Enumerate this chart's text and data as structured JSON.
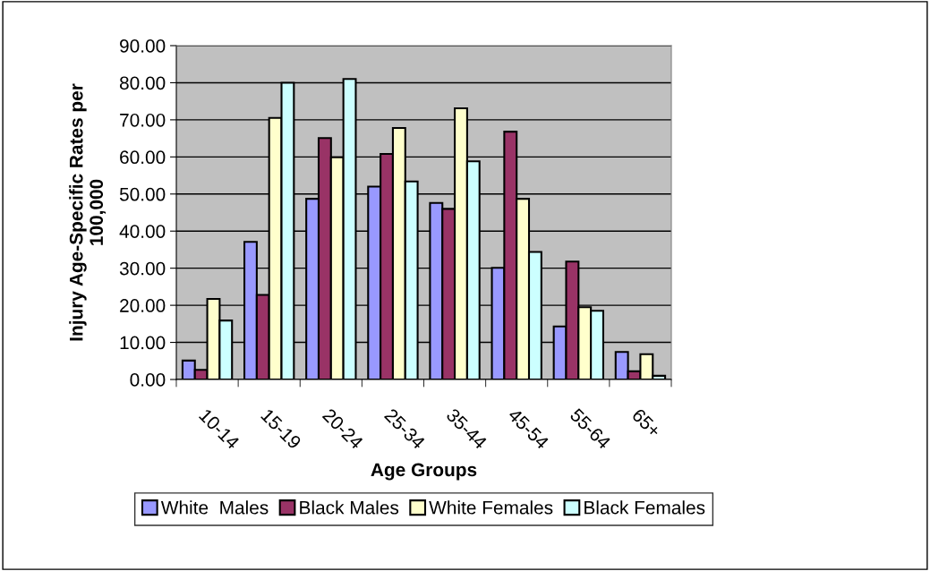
{
  "chart_data": {
    "type": "bar",
    "xlabel": "Age Groups",
    "ylabel": "Injury Age-Specific Rates per\n100,000",
    "categories": [
      "10-14",
      "15-19",
      "20-24",
      "25-34",
      "35-44",
      "45-54",
      "55-64",
      "65+"
    ],
    "series": [
      {
        "name": "White  Males",
        "color": "#9999ff",
        "values": [
          5.1,
          37.1,
          48.7,
          52.0,
          47.6,
          30.1,
          14.3,
          7.4
        ]
      },
      {
        "name": "Black Males",
        "color": "#993366",
        "values": [
          2.6,
          22.8,
          65.1,
          60.8,
          46.0,
          66.8,
          31.8,
          2.2
        ]
      },
      {
        "name": "White Females",
        "color": "#ffffcc",
        "values": [
          21.7,
          70.5,
          59.9,
          67.8,
          73.1,
          48.7,
          19.5,
          6.8
        ]
      },
      {
        "name": "Black Females",
        "color": "#ccffff",
        "values": [
          15.9,
          80.0,
          81.0,
          53.4,
          58.8,
          34.4,
          18.5,
          1.0
        ]
      }
    ],
    "ylim": [
      0,
      90
    ],
    "yticks": [
      {
        "value": 0,
        "label": "0.00"
      },
      {
        "value": 10,
        "label": "10.00"
      },
      {
        "value": 20,
        "label": "20.00"
      },
      {
        "value": 30,
        "label": "30.00"
      },
      {
        "value": 40,
        "label": "40.00"
      },
      {
        "value": 50,
        "label": "50.00"
      },
      {
        "value": 60,
        "label": "60.00"
      },
      {
        "value": 70,
        "label": "70.00"
      },
      {
        "value": 80,
        "label": "80.00"
      },
      {
        "value": 90,
        "label": "90.00"
      }
    ],
    "grid": "y",
    "legend": "bottom"
  }
}
